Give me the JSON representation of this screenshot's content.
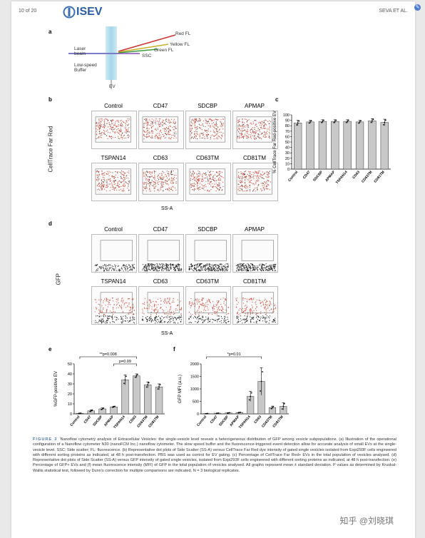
{
  "header": {
    "page": "10 of 20",
    "brand": "ISEV",
    "running_head": "SEVA ET AL."
  },
  "panels": {
    "a": {
      "letter": "a",
      "labels": {
        "red": "Red FL",
        "yellow": "Yellow FL",
        "green": "Green FL",
        "ssc": "SSC",
        "laser": "Laser\nbeam",
        "buffer": "Low-speed\nBuffer",
        "ev": "EV"
      }
    },
    "b": {
      "letter": "b",
      "ylabel": "CellTrace Far Red",
      "xlabel": "SS-A",
      "plots": [
        "Control",
        "CD47",
        "SDCBP",
        "APMAP",
        "TSPAN14",
        "CD63",
        "CD63TM",
        "CD81TM"
      ]
    },
    "c": {
      "letter": "c",
      "ylabel": "% CellTrace Far Red-positive EV"
    },
    "d": {
      "letter": "d",
      "ylabel": "GFP",
      "xlabel": "SS-A",
      "plots": [
        "Control",
        "CD47",
        "SDCBP",
        "APMAP",
        "TSPAN14",
        "CD63",
        "CD63TM",
        "CD81TM"
      ]
    },
    "e": {
      "letter": "e",
      "ylabel": "%GFP-positive EV",
      "annotation1": "**p=0.008",
      "annotation2": "p=0.09"
    },
    "f": {
      "letter": "f",
      "ylabel": "GFP MFI (a.u.)",
      "annotation1": "*p=0.01"
    }
  },
  "chart_data": [
    {
      "type": "bar",
      "panel": "c",
      "categories": [
        "Control",
        "CD47",
        "SDCBP",
        "APMAP",
        "TSPAN14",
        "CD63",
        "CD63TM",
        "CD81TM"
      ],
      "values": [
        85,
        87,
        88,
        88,
        88,
        87,
        89,
        86
      ],
      "errors": [
        5,
        3,
        3,
        3,
        3,
        3,
        4,
        6
      ],
      "ylim": [
        0,
        100
      ],
      "yticks": [
        0,
        10,
        20,
        30,
        40,
        50,
        60,
        70,
        80,
        90,
        100
      ],
      "ylabel": "% CellTrace Far Red-positive EV"
    },
    {
      "type": "bar",
      "panel": "e",
      "categories": [
        "Control",
        "CD47",
        "SDCBP",
        "APMAP",
        "TSPAN14",
        "CD63",
        "CD63TM",
        "CD81TM"
      ],
      "values": [
        0.5,
        3,
        5,
        7,
        34,
        38,
        29,
        27
      ],
      "errors": [
        0.3,
        1,
        1,
        0.7,
        5,
        2,
        3,
        3
      ],
      "ylim": [
        0,
        50
      ],
      "yticks": [
        0,
        10,
        20,
        30,
        40,
        50
      ],
      "ylabel": "%GFP-positive EV"
    },
    {
      "type": "bar",
      "panel": "f",
      "categories": [
        "Control",
        "CD47",
        "SDCBP",
        "APMAP",
        "TSPAN14",
        "CD63",
        "CD63TM",
        "CD81TM"
      ],
      "values": [
        10,
        25,
        35,
        50,
        700,
        1300,
        250,
        300
      ],
      "errors": [
        5,
        10,
        15,
        15,
        200,
        550,
        60,
        150
      ],
      "ylim": [
        0,
        2000
      ],
      "yticks": [
        0,
        500,
        1000,
        1500,
        2000
      ],
      "ylabel": "GFP MFI (a.u.)"
    }
  ],
  "caption": {
    "label": "FIGURE 3",
    "text": "Nanoflow cytometry analysis of Extracellular Vesicles: the single-vesicle level reveals a heterogeneous distribution of GFP among vesicle subpopulations. (a) Illustration of the operational configuration of a Nanoflow cytometer N30 (nanoFCM Inc.) nanoflow cytometer. The slow speed buffer and the fluorescence-triggered event detection allow for accurate analysis of small EVs at the single-vesicle level. SSC: Side scatter; FL: fluorescence. (b) Representative dot plots of Side Scatter (SS-A) versus CellTrace Far Red dye intensity of gated single vesicles isolated from Expi293F cells engineered with different sorting proteins as indicated, at 48 h post-transfection. PBS was used as control for EV gating. (c) Percentage of CellTrace Far Red+ EVs in the total population of vesicles analysed. (d) Representative dot plots of Side Scatter (SS-A) versus GFP intensity of gated single vesicles, isolated from Expi293F cells engineered with different sorting proteins as indicated, at 48 h post-transfection. (e) Percentage of GFP+ EVs and (f) mean fluorescence intensity (MFI) of GFP in the total population of vesicles analysed. All graphs represent mean ± standard deviation. P values as determined by Kruskal-Wallis statistical test, followed by Dunn's correction for multiple comparisons are indicated. N = 3 biological replicates."
  },
  "watermark": "知乎 @刘晓琪"
}
